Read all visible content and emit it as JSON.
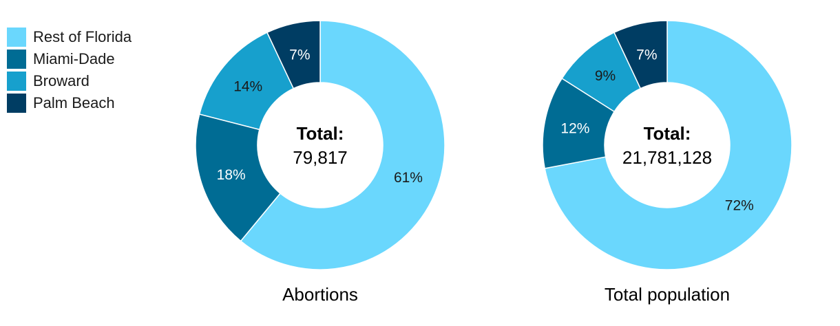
{
  "legend": {
    "items": [
      {
        "label": "Rest of Florida",
        "color": "#6ad7fd"
      },
      {
        "label": "Miami-Dade",
        "color": "#006c94"
      },
      {
        "label": "Broward",
        "color": "#17a0cd"
      },
      {
        "label": "Palm Beach",
        "color": "#003d63"
      }
    ]
  },
  "chart_data": [
    {
      "type": "pie",
      "title": "Abortions",
      "center_label": "Total:",
      "center_value": "79,817",
      "categories": [
        "Rest of Florida",
        "Miami-Dade",
        "Broward",
        "Palm Beach"
      ],
      "values": [
        61,
        18,
        14,
        7
      ],
      "value_labels": [
        "61%",
        "18%",
        "14%",
        "7%"
      ],
      "legend": "top-left"
    },
    {
      "type": "pie",
      "title": "Total population",
      "center_label": "Total:",
      "center_value": "21,781,128",
      "categories": [
        "Rest of Florida",
        "Miami-Dade",
        "Broward",
        "Palm Beach"
      ],
      "values": [
        72,
        12,
        9,
        7
      ],
      "value_labels": [
        "72%",
        "12%",
        "9%",
        "7%"
      ],
      "legend": "top-left"
    }
  ]
}
